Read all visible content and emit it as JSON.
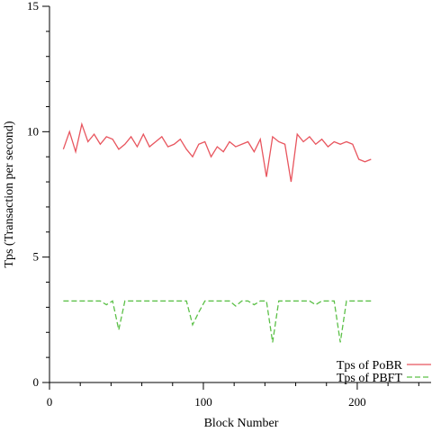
{
  "chart_data": {
    "type": "line",
    "x_label": "Block Number",
    "y_label": "Tps (Transaction per second)",
    "x": [
      9,
      13,
      17,
      21,
      25,
      29,
      33,
      37,
      41,
      45,
      49,
      53,
      57,
      61,
      65,
      69,
      73,
      77,
      81,
      85,
      89,
      93,
      97,
      101,
      105,
      109,
      113,
      117,
      121,
      125,
      129,
      133,
      137,
      141,
      145,
      149,
      153,
      157,
      161,
      165,
      169,
      173,
      177,
      181,
      185,
      189,
      193,
      197,
      201,
      205,
      209
    ],
    "series": [
      {
        "name": "Tps of PoBR",
        "color": "#e8555e",
        "dash": false,
        "values": [
          9.3,
          10.0,
          9.2,
          10.3,
          9.6,
          9.9,
          9.5,
          9.8,
          9.7,
          9.3,
          9.5,
          9.8,
          9.4,
          9.9,
          9.4,
          9.6,
          9.8,
          9.4,
          9.5,
          9.7,
          9.3,
          9.0,
          9.5,
          9.6,
          9.0,
          9.4,
          9.2,
          9.6,
          9.4,
          9.5,
          9.6,
          9.2,
          9.7,
          8.2,
          9.8,
          9.6,
          9.5,
          8.0,
          9.9,
          9.6,
          9.8,
          9.5,
          9.7,
          9.4,
          9.6,
          9.5,
          9.6,
          9.5,
          8.9,
          8.8,
          8.9
        ]
      },
      {
        "name": "Tps of PBFT",
        "color": "#5cc048",
        "dash": true,
        "values": [
          3.25,
          3.25,
          3.25,
          3.25,
          3.25,
          3.25,
          3.25,
          3.1,
          3.25,
          2.1,
          3.25,
          3.25,
          3.25,
          3.25,
          3.25,
          3.25,
          3.25,
          3.25,
          3.25,
          3.25,
          3.25,
          2.3,
          2.8,
          3.25,
          3.25,
          3.25,
          3.25,
          3.25,
          3.05,
          3.25,
          3.25,
          3.1,
          3.25,
          3.25,
          1.6,
          3.25,
          3.25,
          3.25,
          3.25,
          3.25,
          3.25,
          3.1,
          3.25,
          3.25,
          3.25,
          1.6,
          3.25,
          3.25,
          3.25,
          3.25,
          3.25
        ]
      }
    ],
    "xlim": [
      0,
      248
    ],
    "ylim": [
      0,
      15
    ],
    "xticks": [
      0,
      100,
      200
    ],
    "yticks": [
      0,
      5,
      10,
      15
    ],
    "xminorticks": [
      20,
      40,
      60,
      80,
      120,
      140,
      160,
      180,
      220,
      240
    ],
    "yminorticks": [
      1,
      2,
      3,
      4,
      6,
      7,
      8,
      9,
      11,
      12,
      13,
      14
    ],
    "legend": "lower right",
    "grid": false
  }
}
